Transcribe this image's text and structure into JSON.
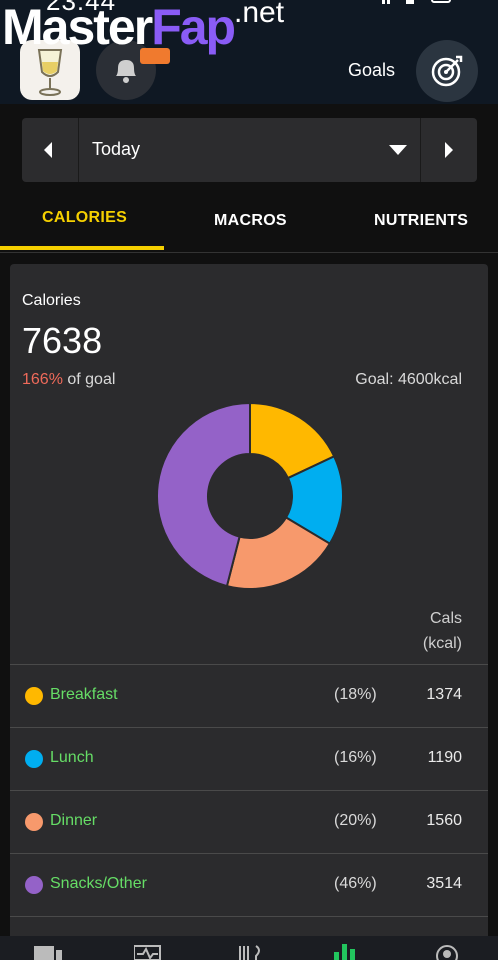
{
  "status_bar": {
    "time": "23:44"
  },
  "watermark": {
    "part1": "Master",
    "part2": "Fap",
    "suffix": ".net"
  },
  "header": {
    "goals_label": "Goals",
    "icons": [
      "avatar-icon",
      "bell-icon",
      "target-icon"
    ]
  },
  "date_bar": {
    "label": "Today",
    "prev_icon": "chevron-left-icon",
    "next_icon": "chevron-right-icon",
    "dropdown_icon": "caret-down-icon"
  },
  "tabs": [
    {
      "label": "CALORIES",
      "active": true
    },
    {
      "label": "MACROS",
      "active": false
    },
    {
      "label": "NUTRIENTS",
      "active": false
    }
  ],
  "summary": {
    "title": "Calories",
    "total": "7638",
    "percent": "166%",
    "percent_suffix": " of goal",
    "goal": "Goal: 4600kcal"
  },
  "table_header": {
    "line1": "Cals",
    "line2": "(kcal)"
  },
  "chart_data": {
    "type": "pie",
    "categories": [
      "Breakfast",
      "Lunch",
      "Dinner",
      "Snacks/Other"
    ],
    "values": [
      1374,
      1190,
      1560,
      3514
    ],
    "percent_labels": [
      "(18%)",
      "(16%)",
      "(20%)",
      "(46%)"
    ],
    "colors": [
      "#ffb800",
      "#00aef0",
      "#f7996c",
      "#9462c8"
    ],
    "donut": true
  },
  "colors": {
    "accent": "#f5d000",
    "over_goal": "#ef6a5a",
    "meal_name": "#66dd66"
  },
  "bottom_nav": {
    "icons": [
      "dashboard-icon",
      "activity-icon",
      "food-icon",
      "stats-icon",
      "profile-icon"
    ]
  }
}
